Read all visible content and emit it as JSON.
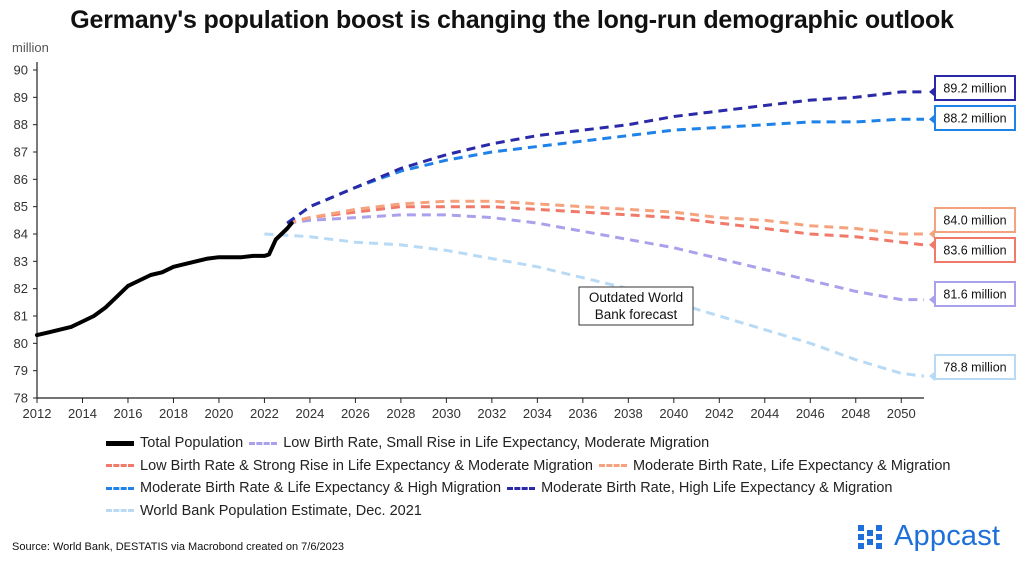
{
  "title": "Germany's population boost is changing the long-run demographic outlook",
  "source": "Source: World Bank, DESTATIS via Macrobond created on 7/6/2023",
  "logo": {
    "text": "Appcast",
    "color": "#1e6fd9"
  },
  "chart_data": {
    "type": "line",
    "title": "Germany's population boost is changing the long-run demographic outlook",
    "ylabel": "million",
    "xlim": [
      2012,
      2051
    ],
    "ylim": [
      78,
      90
    ],
    "x_ticks": [
      "2012",
      "2014",
      "2016",
      "2018",
      "2020",
      "2022",
      "2024",
      "2026",
      "2028",
      "2030",
      "2032",
      "2034",
      "2036",
      "2038",
      "2040",
      "2042",
      "2044",
      "2046",
      "2048",
      "2050"
    ],
    "y_ticks": [
      "78",
      "79",
      "80",
      "81",
      "82",
      "83",
      "84",
      "85",
      "86",
      "87",
      "88",
      "89",
      "90"
    ],
    "grid": false,
    "legend_position": "bottom",
    "series": [
      {
        "name": "Total Population",
        "color": "#000000",
        "style": "solid",
        "x": [
          2012,
          2012.5,
          2013,
          2013.5,
          2014,
          2014.5,
          2015,
          2015.5,
          2016,
          2016.5,
          2017,
          2017.5,
          2018,
          2018.5,
          2019,
          2019.5,
          2020,
          2020.5,
          2021,
          2021.5,
          2022,
          2022.2,
          2022.5,
          2023,
          2023.2
        ],
        "y": [
          80.3,
          80.4,
          80.5,
          80.6,
          80.8,
          81.0,
          81.3,
          81.7,
          82.1,
          82.3,
          82.5,
          82.6,
          82.8,
          82.9,
          83.0,
          83.1,
          83.15,
          83.15,
          83.15,
          83.2,
          83.2,
          83.25,
          83.8,
          84.2,
          84.4
        ]
      },
      {
        "name": "Low Birth Rate, Small Rise in Life Expectancy, Moderate Migration",
        "color": "#a9a1ec",
        "style": "dashed",
        "x": [
          2023,
          2024,
          2026,
          2028,
          2030,
          2032,
          2034,
          2036,
          2038,
          2040,
          2042,
          2044,
          2046,
          2048,
          2050,
          2051
        ],
        "y": [
          84.4,
          84.5,
          84.6,
          84.7,
          84.7,
          84.6,
          84.4,
          84.1,
          83.8,
          83.5,
          83.1,
          82.7,
          82.3,
          81.9,
          81.6,
          81.6
        ]
      },
      {
        "name": "Low Birth Rate & Strong Rise in Life Expectancy & Moderate Migration",
        "color": "#f07a6a",
        "style": "dashed",
        "x": [
          2023,
          2024,
          2026,
          2028,
          2030,
          2032,
          2034,
          2036,
          2038,
          2040,
          2042,
          2044,
          2046,
          2048,
          2050,
          2051
        ],
        "y": [
          84.4,
          84.6,
          84.8,
          85.0,
          85.0,
          85.0,
          84.9,
          84.8,
          84.7,
          84.6,
          84.4,
          84.2,
          84.0,
          83.9,
          83.7,
          83.6
        ]
      },
      {
        "name": "Moderate Birth Rate, Life Expectancy & Migration",
        "color": "#f5a37e",
        "style": "dashed",
        "x": [
          2023,
          2024,
          2026,
          2028,
          2030,
          2032,
          2034,
          2036,
          2038,
          2040,
          2042,
          2044,
          2046,
          2048,
          2050,
          2051
        ],
        "y": [
          84.4,
          84.6,
          84.9,
          85.1,
          85.2,
          85.2,
          85.1,
          85.0,
          84.9,
          84.8,
          84.6,
          84.5,
          84.3,
          84.2,
          84.0,
          84.0
        ]
      },
      {
        "name": "Moderate Birth Rate & Life Expectancy & High Migration",
        "color": "#1f82e8",
        "style": "dashed",
        "x": [
          2023,
          2024,
          2026,
          2028,
          2030,
          2032,
          2034,
          2036,
          2038,
          2040,
          2042,
          2044,
          2046,
          2048,
          2050,
          2051
        ],
        "y": [
          84.4,
          85.0,
          85.7,
          86.3,
          86.7,
          87.0,
          87.2,
          87.4,
          87.6,
          87.8,
          87.9,
          88.0,
          88.1,
          88.1,
          88.2,
          88.2
        ]
      },
      {
        "name": "Moderate Birth Rate, High Life Expectancy & Migration",
        "color": "#2a2aa8",
        "style": "dashed",
        "x": [
          2023,
          2024,
          2026,
          2028,
          2030,
          2032,
          2034,
          2036,
          2038,
          2040,
          2042,
          2044,
          2046,
          2048,
          2050,
          2051
        ],
        "y": [
          84.4,
          85.0,
          85.7,
          86.4,
          86.9,
          87.3,
          87.6,
          87.8,
          88.0,
          88.3,
          88.5,
          88.7,
          88.9,
          89.0,
          89.2,
          89.2
        ]
      },
      {
        "name": "World Bank Population Estimate, Dec. 2021",
        "color": "#b8daf5",
        "style": "dashed",
        "x": [
          2022,
          2024,
          2026,
          2028,
          2030,
          2032,
          2034,
          2036,
          2038,
          2040,
          2042,
          2044,
          2046,
          2048,
          2050,
          2051
        ],
        "y": [
          84.0,
          83.9,
          83.7,
          83.6,
          83.4,
          83.1,
          82.8,
          82.4,
          82.0,
          81.5,
          81.0,
          80.5,
          80.0,
          79.4,
          78.9,
          78.8
        ]
      }
    ],
    "callouts": [
      {
        "label": "89.2 million",
        "color": "#2a2aa8",
        "y": 89.2
      },
      {
        "label": "88.2 million",
        "color": "#1f82e8",
        "y": 88.2
      },
      {
        "label": "84.0 million",
        "color": "#f5a37e",
        "y": 84.0
      },
      {
        "label": "83.6 million",
        "color": "#f07a6a",
        "y": 83.6
      },
      {
        "label": "81.6 million",
        "color": "#a9a1ec",
        "y": 81.6
      },
      {
        "label": "78.8 million",
        "color": "#b8daf5",
        "y": 78.8
      }
    ],
    "annotation": {
      "line1": "Outdated World",
      "line2": "Bank forecast"
    }
  },
  "legend": {
    "rows": [
      [
        {
          "label": "Total Population",
          "color": "#000000",
          "style": "solid"
        },
        {
          "label": "Low Birth Rate, Small Rise in Life Expectancy, Moderate Migration",
          "color": "#a9a1ec",
          "style": "dashed"
        }
      ],
      [
        {
          "label": "Low Birth Rate & Strong Rise in Life Expectancy & Moderate Migration",
          "color": "#f07a6a",
          "style": "dashed"
        },
        {
          "label": "Moderate Birth Rate, Life Expectancy & Migration",
          "color": "#f5a37e",
          "style": "dashed"
        }
      ],
      [
        {
          "label": "Moderate Birth Rate & Life Expectancy & High Migration",
          "color": "#1f82e8",
          "style": "dashed"
        },
        {
          "label": "Moderate Birth Rate, High Life Expectancy & Migration",
          "color": "#2a2aa8",
          "style": "dashed"
        }
      ],
      [
        {
          "label": "World Bank Population Estimate, Dec. 2021",
          "color": "#b8daf5",
          "style": "dashed"
        }
      ]
    ]
  }
}
